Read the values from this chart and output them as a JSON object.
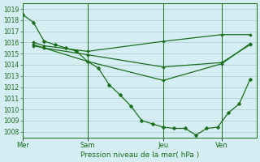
{
  "bg_color": "#d4eef4",
  "grid_color": "#aacccc",
  "line_color": "#1a6e1a",
  "xlabel": "Pression niveau de la mer( hPa )",
  "ylim": [
    1007.5,
    1019.5
  ],
  "yticks": [
    1008,
    1009,
    1010,
    1011,
    1012,
    1013,
    1014,
    1015,
    1016,
    1017,
    1018,
    1019
  ],
  "xtick_labels": [
    "Mer",
    "Sam",
    "Jeu",
    "Ven"
  ],
  "xtick_positions": [
    0.0,
    3.0,
    6.5,
    9.2
  ],
  "xlim": [
    0,
    10.8
  ],
  "main_line": {
    "x": [
      0,
      0.5,
      1,
      1.5,
      2,
      2.5,
      3,
      3.5,
      4,
      4.5,
      5,
      5.5,
      6,
      6.5,
      7,
      7.5,
      8,
      8.5,
      9,
      9.5,
      10,
      10.5
    ],
    "y": [
      1018.5,
      1017.8,
      1016.1,
      1015.8,
      1015.5,
      1015.2,
      1014.3,
      1013.7,
      1012.2,
      1011.3,
      1010.3,
      1009.0,
      1008.7,
      1008.4,
      1008.3,
      1008.3,
      1007.7,
      1008.3,
      1008.4,
      1009.7,
      1010.5,
      1012.7
    ]
  },
  "extra_lines": [
    {
      "x": [
        0.5,
        1.0,
        3.0,
        6.5,
        9.2,
        10.5
      ],
      "y": [
        1016.0,
        1015.7,
        1015.2,
        1016.1,
        1016.7,
        1016.7
      ]
    },
    {
      "x": [
        0.5,
        1.0,
        3.0,
        6.5,
        9.2,
        10.5
      ],
      "y": [
        1015.8,
        1015.5,
        1014.9,
        1013.8,
        1014.2,
        1015.8
      ]
    },
    {
      "x": [
        0.5,
        1.0,
        3.0,
        6.5,
        9.2,
        10.5
      ],
      "y": [
        1015.7,
        1015.5,
        1014.3,
        1012.6,
        1014.1,
        1015.9
      ]
    }
  ]
}
